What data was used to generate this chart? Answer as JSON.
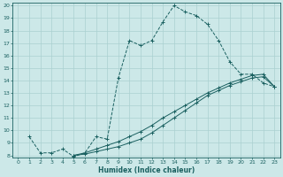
{
  "xlabel": "Humidex (Indice chaleur)",
  "bg_color": "#cce8e8",
  "line_color": "#1a6060",
  "grid_color": "#aad0d0",
  "xlim": [
    -0.5,
    23.5
  ],
  "ylim": [
    7.8,
    20.2
  ],
  "xticks": [
    0,
    1,
    2,
    3,
    4,
    5,
    6,
    7,
    8,
    9,
    10,
    11,
    12,
    13,
    14,
    15,
    16,
    17,
    18,
    19,
    20,
    21,
    22,
    23
  ],
  "yticks": [
    8,
    9,
    10,
    11,
    12,
    13,
    14,
    15,
    16,
    17,
    18,
    19,
    20
  ],
  "series": [
    {
      "x": [
        1,
        2,
        3,
        4,
        5,
        6,
        7,
        8,
        9,
        10,
        11,
        12,
        13,
        14,
        15,
        16,
        17,
        18,
        19,
        20,
        21,
        22,
        23
      ],
      "y": [
        9.5,
        8.2,
        8.2,
        8.5,
        7.9,
        8.2,
        9.5,
        9.3,
        14.2,
        17.2,
        16.8,
        17.2,
        18.7,
        20.0,
        19.5,
        19.2,
        18.5,
        17.2,
        15.5,
        14.5,
        14.5,
        13.8,
        13.5
      ],
      "style": "--",
      "marker": "+"
    },
    {
      "x": [
        5,
        6,
        7,
        8,
        9,
        10,
        11,
        12,
        13,
        14,
        15,
        16,
        17,
        18,
        19,
        20,
        21,
        22,
        23
      ],
      "y": [
        8.0,
        8.1,
        8.3,
        8.5,
        8.7,
        9.0,
        9.3,
        9.8,
        10.4,
        11.0,
        11.6,
        12.2,
        12.8,
        13.2,
        13.6,
        13.9,
        14.2,
        14.3,
        13.5
      ],
      "style": "-",
      "marker": "+"
    },
    {
      "x": [
        5,
        6,
        7,
        8,
        9,
        10,
        11,
        12,
        13,
        14,
        15,
        16,
        17,
        18,
        19,
        20,
        21,
        22,
        23
      ],
      "y": [
        8.0,
        8.2,
        8.5,
        8.8,
        9.1,
        9.5,
        9.9,
        10.4,
        11.0,
        11.5,
        12.0,
        12.5,
        13.0,
        13.4,
        13.8,
        14.1,
        14.4,
        14.5,
        13.5
      ],
      "style": "-",
      "marker": "+"
    }
  ]
}
